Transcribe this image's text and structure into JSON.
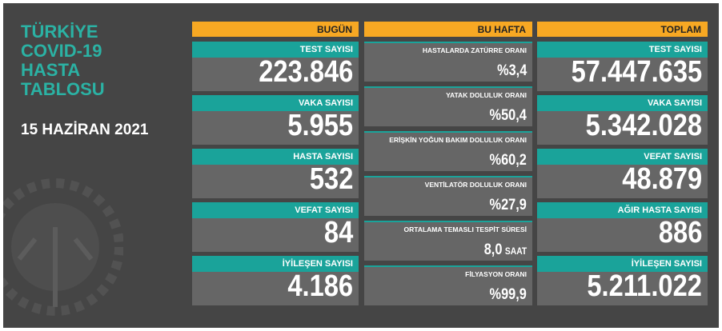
{
  "title_lines": [
    "TÜRKİYE",
    "COVID-19",
    "HASTA",
    "TABLOSU"
  ],
  "date": "15 HAZİRAN 2021",
  "columns": [
    {
      "header": "BUGÜN",
      "items": [
        {
          "label": "TEST SAYISI",
          "value": "223.846"
        },
        {
          "label": "VAKA SAYISI",
          "value": "5.955"
        },
        {
          "label": "HASTA SAYISI",
          "value": "532"
        },
        {
          "label": "VEFAT SAYISI",
          "value": "84"
        },
        {
          "label": "İYİLEŞEN SAYISI",
          "value": "4.186"
        }
      ]
    },
    {
      "header": "BU HAFTA",
      "items": [
        {
          "label": "HASTALARDA ZATÜRRE ORANI",
          "value": "%3,4"
        },
        {
          "label": "YATAK DOLULUK ORANI",
          "value": "%50,4"
        },
        {
          "label": "ERİŞKİN YOĞUN BAKIM DOLULUK ORANI",
          "value": "%60,2"
        },
        {
          "label": "VENTİLATÖR DOLULUK ORANI",
          "value": "%27,9"
        },
        {
          "label": "ORTALAMA TEMASLI TESPİT SÜRESİ",
          "value": "8,0",
          "unit": "SAAT"
        },
        {
          "label": "FİLYASYON ORANI",
          "value": "%99,9"
        }
      ]
    },
    {
      "header": "TOPLAM",
      "items": [
        {
          "label": "TEST SAYISI",
          "value": "57.447.635"
        },
        {
          "label": "VAKA SAYISI",
          "value": "5.342.028"
        },
        {
          "label": "VEFAT SAYISI",
          "value": "48.879"
        },
        {
          "label": "AĞIR HASTA SAYISI",
          "value": "886"
        },
        {
          "label": "İYİLEŞEN SAYISI",
          "value": "5.211.022"
        }
      ]
    }
  ]
}
